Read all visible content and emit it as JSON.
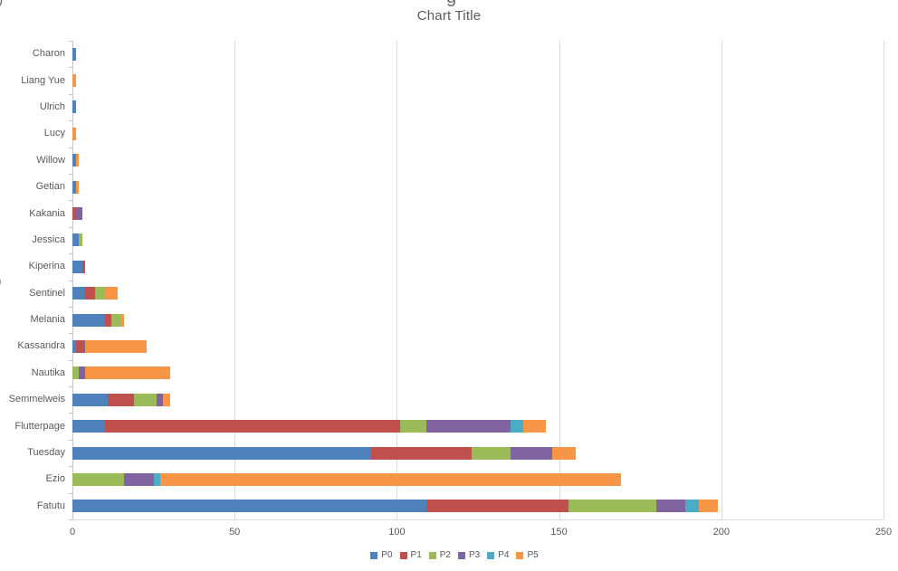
{
  "artifacts": {
    "top_left_fragment": ")",
    "top_center_fragment": "g",
    "left_edge_fragment": "0"
  },
  "chart_data": {
    "type": "bar",
    "orientation": "horizontal",
    "stacked": true,
    "title": "Chart Title",
    "xlabel": "",
    "ylabel": "",
    "xlim": [
      0,
      250
    ],
    "x_ticks": [
      0,
      50,
      100,
      150,
      200,
      250
    ],
    "grid": true,
    "legend_position": "bottom",
    "categories": [
      "Charon",
      "Liang Yue",
      "Ulrich",
      "Lucy",
      "Willow",
      "Getian",
      "Kakania",
      "Jessica",
      "Kiperina",
      "Sentinel",
      "Melania",
      "Kassandra",
      "Nautika",
      "Semmelweis",
      "Flutterpage",
      "Tuesday",
      "Ezio",
      "Fatutu"
    ],
    "series": [
      {
        "name": "P0",
        "color": "#4F81BD",
        "values": [
          1,
          0,
          1,
          0,
          1,
          1,
          0,
          2,
          3,
          4,
          10,
          1,
          0,
          11,
          10,
          92,
          0,
          109
        ]
      },
      {
        "name": "P1",
        "color": "#C0504D",
        "values": [
          0,
          0,
          0,
          0,
          0,
          0,
          1,
          0,
          1,
          3,
          2,
          2,
          0,
          8,
          91,
          31,
          0,
          44
        ]
      },
      {
        "name": "P2",
        "color": "#9BBB59",
        "values": [
          0,
          0,
          0,
          0,
          0,
          0,
          0,
          1,
          0,
          3,
          3,
          0,
          2,
          7,
          8,
          12,
          16,
          27
        ]
      },
      {
        "name": "P3",
        "color": "#8064A2",
        "values": [
          0,
          0,
          0,
          0,
          0,
          0,
          2,
          0,
          0,
          0,
          0,
          1,
          2,
          2,
          26,
          13,
          9,
          9
        ]
      },
      {
        "name": "P4",
        "color": "#4BACC6",
        "values": [
          0,
          0,
          0,
          0,
          0,
          0,
          0,
          0,
          0,
          0,
          0,
          0,
          0,
          0,
          4,
          0,
          2,
          4
        ]
      },
      {
        "name": "P5",
        "color": "#F79646",
        "values": [
          0,
          1,
          0,
          1,
          1,
          1,
          0,
          0,
          0,
          4,
          1,
          19,
          26,
          2,
          7,
          7,
          142,
          6
        ]
      }
    ]
  },
  "legend": {
    "entries": [
      {
        "label": "P0",
        "color": "#4F81BD"
      },
      {
        "label": "P1",
        "color": "#C0504D"
      },
      {
        "label": "P2",
        "color": "#9BBB59"
      },
      {
        "label": "P3",
        "color": "#8064A2"
      },
      {
        "label": "P4",
        "color": "#4BACC6"
      },
      {
        "label": "P5",
        "color": "#F79646"
      }
    ]
  },
  "colors": {
    "background": "#FFFFFF",
    "gridline": "#D9D9D9",
    "axis_text": "#595959",
    "title_text": "#595959"
  }
}
